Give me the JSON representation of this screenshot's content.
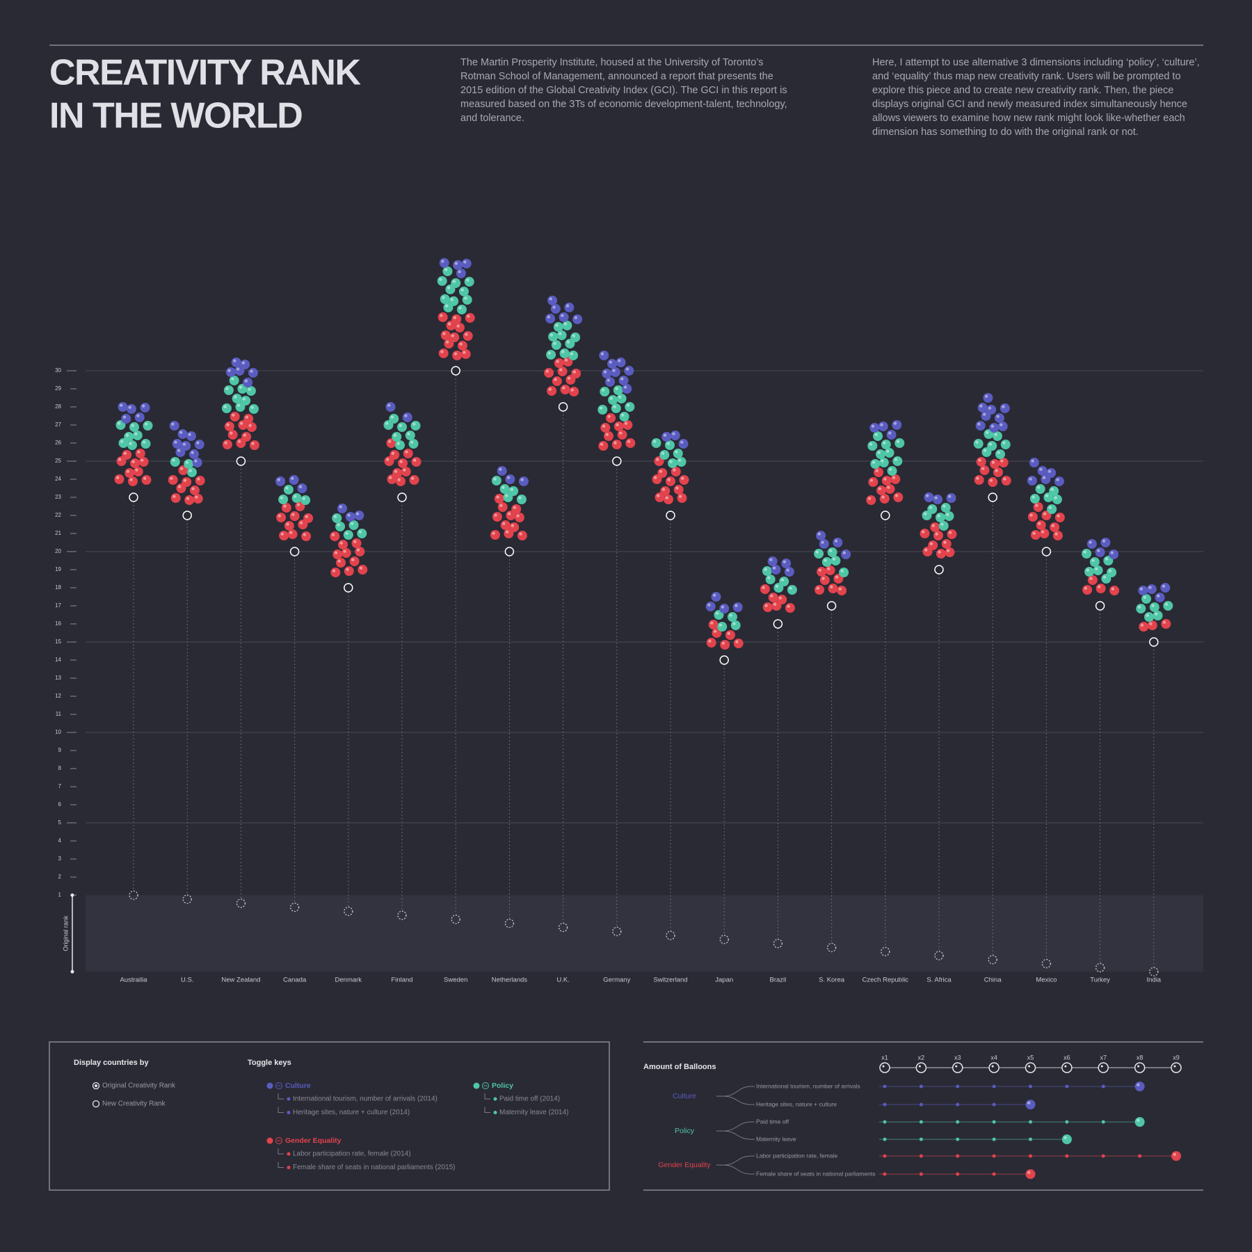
{
  "header": {
    "title": [
      "CREATIVITY RANK",
      "IN THE WORLD"
    ],
    "paragraphs": [
      "The Martin Prosperity Institute, housed at the University of Toronto’s Rotman School of Management, announced a report that presents the 2015 edition of the Global Creativity Index (GCI). The GCI in this report is measured based on the 3Ts of economic development-talent, technology, and tolerance.",
      "Here, I attempt to use alternative 3 dimensions including ‘policy’, ‘culture’, and ‘equality’ thus map new creativity rank. Users will be prompted to explore this piece and to create new creativity rank. Then, the piece displays original GCI and newly measured index simultaneously hence allows viewers to examine how new rank might look like-whether each dimension has something to do with the original rank or not."
    ]
  },
  "chart_data": {
    "type": "balloon",
    "categories": [
      "Austrailia",
      "U.S.",
      "New Zealand",
      "Canada",
      "Denmark",
      "Finland",
      "Sweden",
      "Netherlands",
      "U.K.",
      "Germany",
      "Switzerland",
      "Japan",
      "Brazil",
      "S. Korea",
      "Czech Republic",
      "S. Africa",
      "China",
      "Mexico",
      "Turkey",
      "India"
    ],
    "new_rank": [
      23,
      22,
      25,
      20,
      18,
      23,
      30,
      20,
      28,
      25,
      22,
      14,
      16,
      17,
      22,
      19,
      23,
      20,
      17,
      15
    ],
    "original_rank": [
      1,
      2,
      3,
      4,
      5,
      6,
      7,
      8,
      9,
      10,
      11,
      12,
      13,
      14,
      15,
      16,
      17,
      18,
      19,
      20
    ],
    "original_rank_label": "Original rank",
    "original_rank_lim": [
      1,
      20
    ],
    "ylim": [
      1,
      30
    ],
    "yticks": [
      1,
      2,
      3,
      4,
      5,
      6,
      7,
      8,
      9,
      10,
      11,
      12,
      13,
      14,
      15,
      16,
      17,
      18,
      19,
      20,
      21,
      22,
      23,
      24,
      25,
      26,
      27,
      28,
      29,
      30
    ],
    "gridlines": [
      5,
      10,
      15,
      20,
      25,
      30
    ],
    "series": [
      {
        "name": "Culture",
        "color": "#5a5cc0",
        "values": [
          5,
          9,
          6,
          3,
          3,
          2,
          4,
          3,
          6,
          9,
          3,
          4,
          4,
          4,
          4,
          3,
          9,
          6,
          4,
          4
        ],
        "indicators": [
          {
            "label": "International tourism, number of arrivals (2014)",
            "short": "International tourism, number of arrivals",
            "multiplier": 8
          },
          {
            "label": "Heritage sites, nature + culture (2014)",
            "short": "Heritage sites, nature + culture",
            "multiplier": 5
          }
        ]
      },
      {
        "name": "Policy",
        "color": "#4fc6a6",
        "values": [
          8,
          3,
          9,
          4,
          5,
          8,
          11,
          5,
          10,
          8,
          6,
          4,
          5,
          5,
          10,
          6,
          7,
          6,
          7,
          6
        ],
        "indicators": [
          {
            "label": "Paid time off (2014)",
            "short": "Paid time off",
            "multiplier": 8
          },
          {
            "label": "Maternity leave (2014)",
            "short": "Maternity leave",
            "multiplier": 6
          }
        ]
      },
      {
        "name": "Gender Equality",
        "color": "#e2434c",
        "values": [
          10,
          9,
          10,
          10,
          11,
          11,
          13,
          11,
          10,
          9,
          11,
          6,
          6,
          7,
          9,
          9,
          8,
          9,
          4,
          3
        ],
        "indicators": [
          {
            "label": "Labor participation rate, female (2014)",
            "short": "Labor participation rate, female",
            "multiplier": 9
          },
          {
            "label": "Female share of seats in national parliaments (2015)",
            "short": "Female share of seats in national parliaments",
            "multiplier": 5
          }
        ]
      }
    ]
  },
  "controls": {
    "display_by": {
      "title": "Display countries by",
      "options": [
        "Original Creativity Rank",
        "New Creativity Rank"
      ]
    },
    "toggle": {
      "title": "Toggle keys"
    }
  },
  "amount": {
    "title": "Amount of Balloons",
    "scale": [
      {
        "value": 1,
        "label": "x1"
      },
      {
        "value": 2,
        "label": "x2"
      },
      {
        "value": 3,
        "label": "x3"
      },
      {
        "value": 4,
        "label": "x4"
      },
      {
        "value": 5,
        "label": "x5"
      },
      {
        "value": 6,
        "label": "x6"
      },
      {
        "value": 7,
        "label": "x7"
      },
      {
        "value": 8,
        "label": "x8"
      },
      {
        "value": 9,
        "label": "x9"
      }
    ]
  }
}
